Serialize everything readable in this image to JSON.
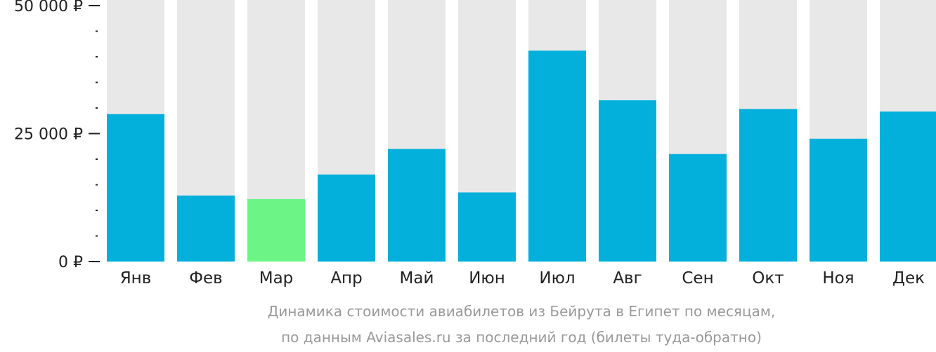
{
  "chart_data": {
    "type": "bar",
    "categories": [
      "Янв",
      "Фев",
      "Мар",
      "Апр",
      "Май",
      "Июн",
      "Июл",
      "Авг",
      "Сен",
      "Окт",
      "Ноя",
      "Дек"
    ],
    "values": [
      28800,
      12900,
      12200,
      17000,
      22000,
      13500,
      41200,
      31500,
      21000,
      29800,
      24000,
      29300
    ],
    "ylim": [
      0,
      50000
    ],
    "y_ticks": [
      {
        "value": 0,
        "label": "0 ₽"
      },
      {
        "value": 25000,
        "label": "25 000 ₽"
      },
      {
        "value": 50000,
        "label": "50 000 ₽"
      }
    ],
    "minor_tick_step": 5000,
    "highlight_index": 2,
    "colors": {
      "bar": "#03b0dc",
      "highlight": "#6cf487",
      "background": "#e8e8e8",
      "axis": "#222222"
    },
    "caption": [
      "Динамика стоимости авиабилетов из Бейрута в Египет по месяцам,",
      "по данным Aviasales.ru за последний год (билеты туда-обратно)"
    ]
  }
}
